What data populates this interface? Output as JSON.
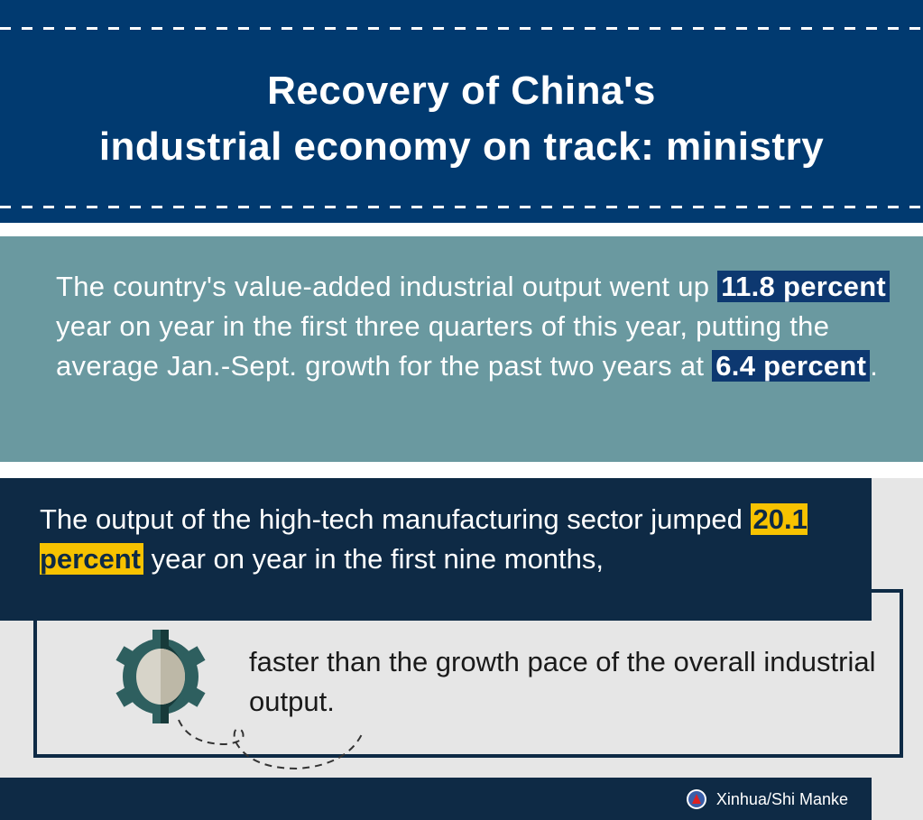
{
  "header": {
    "title_line1": "Recovery of China's",
    "title_line2": "industrial economy on track: ministry"
  },
  "section1": {
    "text_a": "The country's value-added industrial output went up ",
    "highlight1": "11.8 percent",
    "text_b": " year on year in the first three quarters of this year, putting the average Jan.-Sept. growth for the past two years at ",
    "highlight2": "6.4 percent",
    "text_c": "."
  },
  "section2": {
    "text_a": "The output of the high-tech manufacturing sector jumped ",
    "highlight": "20.1 percent",
    "text_b": " year on year in the first nine months,",
    "continuation": "faster than the growth pace of the overall industrial output."
  },
  "footer": {
    "credit": "Xinhua/Shi Manke"
  },
  "colors": {
    "navy": "#013a70",
    "teal": "#6a99a0",
    "dark": "#0e2a45",
    "yellow": "#f7c200"
  }
}
